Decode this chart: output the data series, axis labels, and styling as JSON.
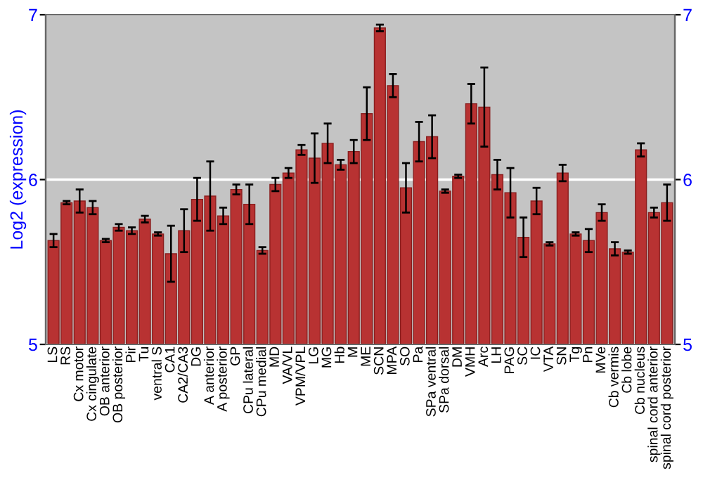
{
  "chart_data": {
    "type": "bar",
    "ylabel": "Log2 (expression)",
    "categories": [
      "LS",
      "RS",
      "Cx motor",
      "Cx cingulate",
      "OB anterior",
      "OB posterior",
      "Pir",
      "Tu",
      "ventral S",
      "CA1",
      "CA2/CA3",
      "DG",
      "A anterior",
      "A posterior",
      "GP",
      "CPu lateral",
      "CPu medial",
      "MD",
      "VA/VL",
      "VPM/VPL",
      "LG",
      "MG",
      "Hb",
      "M",
      "ME",
      "SCN",
      "MPA",
      "SO",
      "Pa",
      "SPa ventral",
      "SPa dorsal",
      "DM",
      "VMH",
      "Arc",
      "LH",
      "PAG",
      "SC",
      "IC",
      "VTA",
      "SN",
      "Tg",
      "Pn",
      "MVe",
      "Cb vermis",
      "Cb lobe",
      "Cb nucleus",
      "spinal cord anterior",
      "spinal cord posterior"
    ],
    "values": [
      5.63,
      5.86,
      5.87,
      5.83,
      5.63,
      5.71,
      5.69,
      5.76,
      5.67,
      5.55,
      5.69,
      5.88,
      5.9,
      5.78,
      5.94,
      5.85,
      5.57,
      5.97,
      6.04,
      6.18,
      6.13,
      6.22,
      6.09,
      6.17,
      6.4,
      6.92,
      6.57,
      5.95,
      6.23,
      6.26,
      5.93,
      6.02,
      6.46,
      6.44,
      6.03,
      5.92,
      5.65,
      5.87,
      5.61,
      6.04,
      5.67,
      5.63,
      5.8,
      5.58,
      5.56,
      6.18,
      5.8,
      5.86
    ],
    "errors": [
      0.04,
      0.01,
      0.07,
      0.04,
      0.01,
      0.02,
      0.02,
      0.02,
      0.01,
      0.17,
      0.13,
      0.13,
      0.21,
      0.05,
      0.03,
      0.12,
      0.02,
      0.04,
      0.03,
      0.03,
      0.15,
      0.12,
      0.03,
      0.07,
      0.16,
      0.02,
      0.07,
      0.15,
      0.12,
      0.13,
      0.01,
      0.01,
      0.12,
      0.24,
      0.09,
      0.15,
      0.12,
      0.08,
      0.01,
      0.05,
      0.01,
      0.07,
      0.05,
      0.04,
      0.01,
      0.04,
      0.03,
      0.11
    ],
    "color": "#b83232",
    "ylim": [
      5,
      7
    ],
    "yticks": [
      5,
      6,
      7
    ],
    "y2lim": [
      5,
      7
    ],
    "y2ticks": [
      5,
      6,
      7
    ],
    "grid": "y"
  }
}
